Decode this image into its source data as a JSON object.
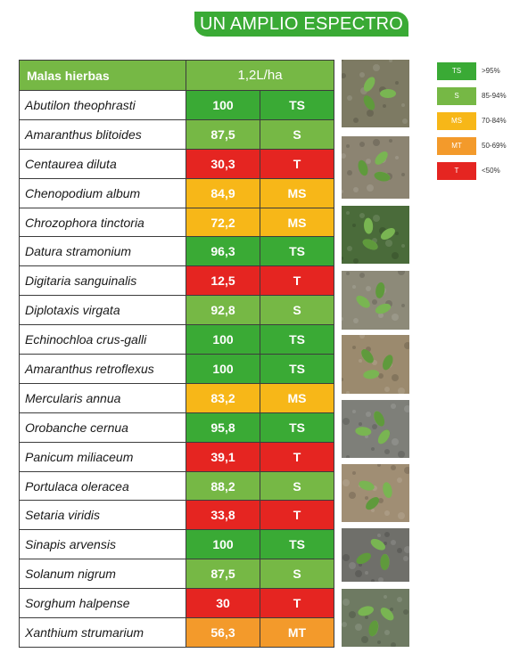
{
  "title": "UN AMPLIO ESPECTRO",
  "table": {
    "header_weed": "Malas hierbas",
    "header_dose": "1,2L/ha",
    "rows": [
      {
        "weed": "Abutilon theophrasti",
        "value": "100",
        "class": "TS"
      },
      {
        "weed": "Amaranthus blitoides",
        "value": "87,5",
        "class": "S"
      },
      {
        "weed": "Centaurea diluta",
        "value": "30,3",
        "class": "T"
      },
      {
        "weed": "Chenopodium album",
        "value": "84,9",
        "class": "MS"
      },
      {
        "weed": "Chrozophora tinctoria",
        "value": "72,2",
        "class": "MS"
      },
      {
        "weed": "Datura stramonium",
        "value": "96,3",
        "class": "TS"
      },
      {
        "weed": "Digitaria sanguinalis",
        "value": "12,5",
        "class": "T"
      },
      {
        "weed": "Diplotaxis virgata",
        "value": "92,8",
        "class": "S"
      },
      {
        "weed": "Echinochloa crus-galli",
        "value": "100",
        "class": "TS"
      },
      {
        "weed": "Amaranthus retroflexus",
        "value": "100",
        "class": "TS"
      },
      {
        "weed": "Mercularis annua",
        "value": "83,2",
        "class": "MS"
      },
      {
        "weed": "Orobanche cernua",
        "value": "95,8",
        "class": "TS"
      },
      {
        "weed": "Panicum miliaceum",
        "value": "39,1",
        "class": "T"
      },
      {
        "weed": "Portulaca oleracea",
        "value": "88,2",
        "class": "S"
      },
      {
        "weed": "Setaria viridis",
        "value": "33,8",
        "class": "T"
      },
      {
        "weed": "Sinapis arvensis",
        "value": "100",
        "class": "TS"
      },
      {
        "weed": "Solanum nigrum",
        "value": "87,5",
        "class": "S"
      },
      {
        "weed": "Sorghum halpense",
        "value": "30",
        "class": "T"
      },
      {
        "weed": "Xanthium strumarium",
        "value": "56,3",
        "class": "MT"
      }
    ]
  },
  "legend": [
    {
      "code": "TS",
      "range": ">95%"
    },
    {
      "code": "S",
      "range": "85-94%"
    },
    {
      "code": "MS",
      "range": "70-84%"
    },
    {
      "code": "MT",
      "range": "50-69%"
    },
    {
      "code": "T",
      "range": "<50%"
    }
  ],
  "colors": {
    "TS": "#3aaa35",
    "S": "#76b845",
    "MS": "#f7b718",
    "MT": "#f39a2b",
    "T": "#e52521",
    "header": "#76b845",
    "title_badge": "#3aaa35"
  },
  "photos": [
    {
      "icon": "weed-seedling-photo"
    },
    {
      "icon": "weed-seedling-photo"
    },
    {
      "icon": "weed-seedling-photo"
    },
    {
      "icon": "weed-seedling-photo"
    },
    {
      "icon": "weed-seedling-photo"
    },
    {
      "icon": "weed-seedling-photo"
    },
    {
      "icon": "weed-seedling-photo"
    },
    {
      "icon": "weed-seedling-photo"
    },
    {
      "icon": "weed-seedling-photo"
    }
  ]
}
